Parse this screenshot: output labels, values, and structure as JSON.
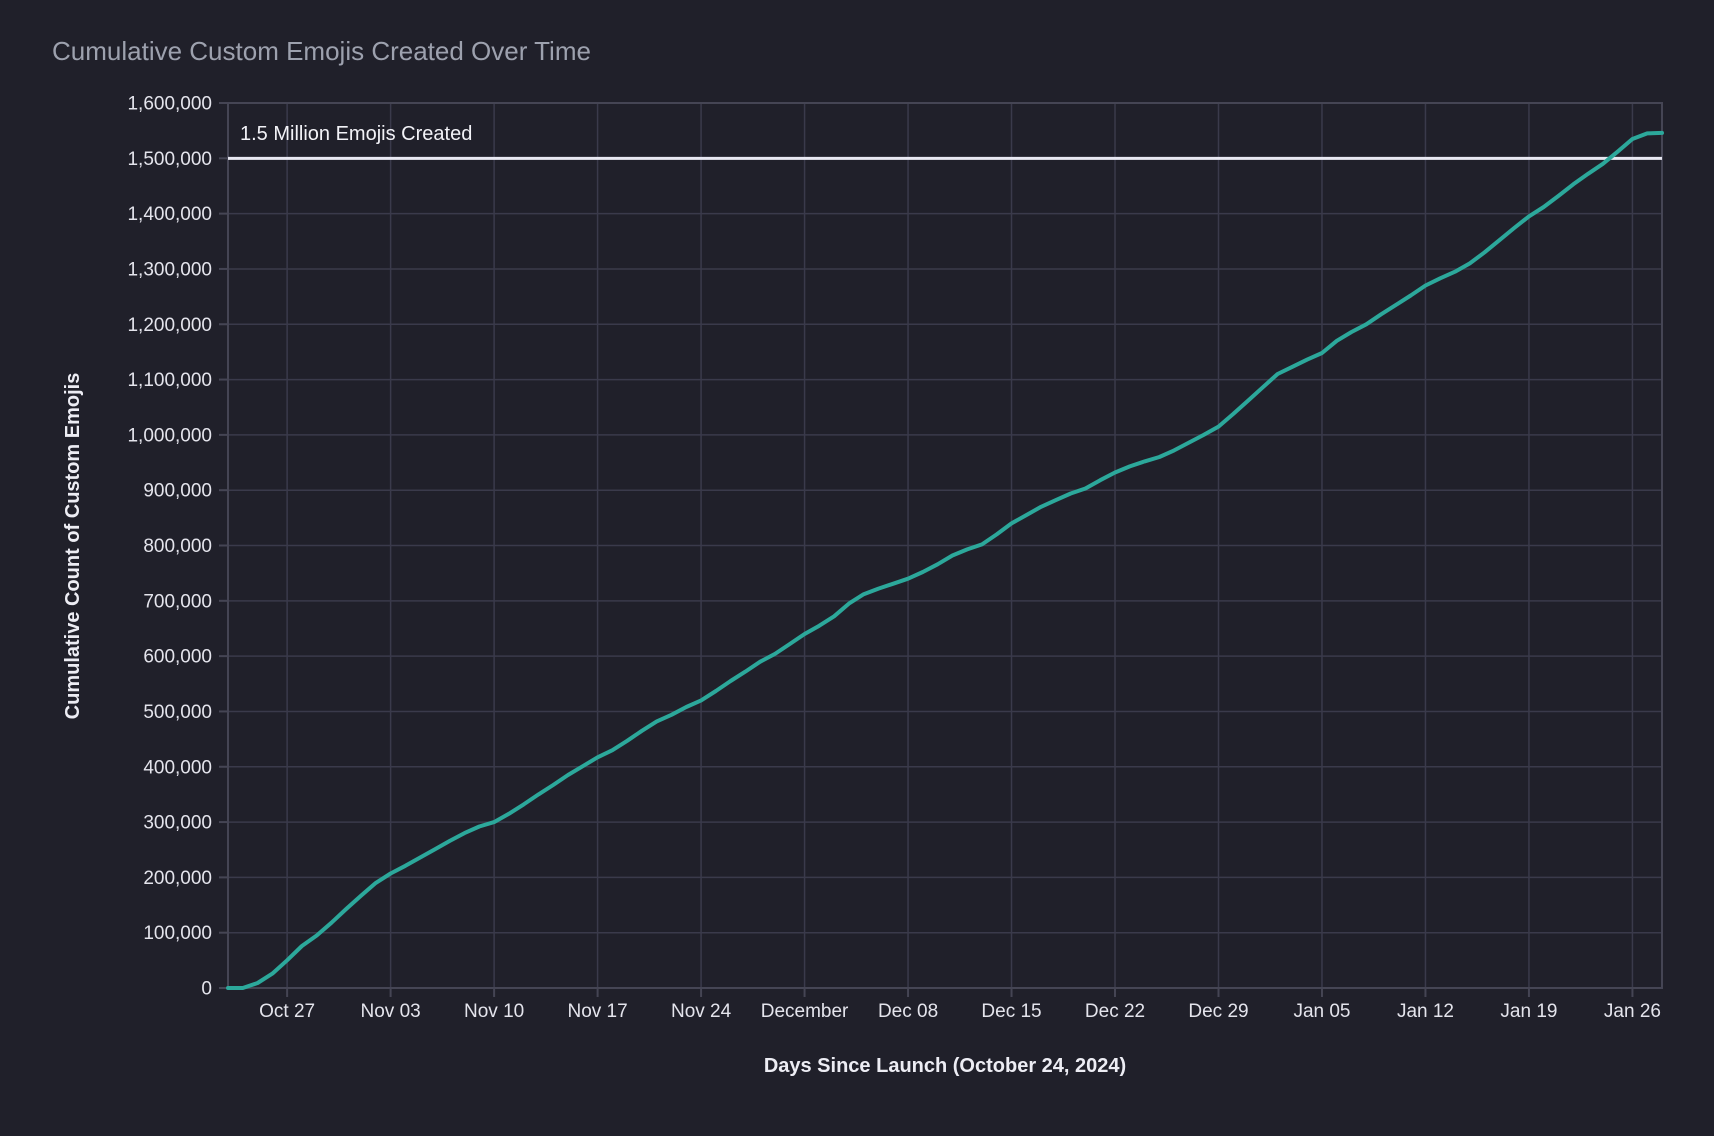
{
  "title": "Cumulative Custom Emojis Created Over Time",
  "colors": {
    "background": "#20202A",
    "grid": "#3A3A4B",
    "spine": "#454554",
    "line": "#2CA89B",
    "reference_line": "#E8E8F2",
    "title_text": "#9DA1AE",
    "tick_text": "#E4E4EC",
    "axis_title_text": "#EDEDF4",
    "annotation_text": "#F2F2F7"
  },
  "chart_data": {
    "type": "line",
    "title": "Cumulative Custom Emojis Created Over Time",
    "xlabel": "Days Since Launch (October 24, 2024)",
    "ylabel": "Cumulative Count of Custom Emojis",
    "grid": true,
    "legend_visible": false,
    "x_unit": "days since launch (Oct 24, 2024)",
    "xlim": [
      -1,
      96
    ],
    "ylim": [
      0,
      1600000
    ],
    "x_ticks": [
      {
        "day": 3,
        "label": "Oct 27"
      },
      {
        "day": 10,
        "label": "Nov 03"
      },
      {
        "day": 17,
        "label": "Nov 10"
      },
      {
        "day": 24,
        "label": "Nov 17"
      },
      {
        "day": 31,
        "label": "Nov 24"
      },
      {
        "day": 38,
        "label": "December"
      },
      {
        "day": 45,
        "label": "Dec 08"
      },
      {
        "day": 52,
        "label": "Dec 15"
      },
      {
        "day": 59,
        "label": "Dec 22"
      },
      {
        "day": 66,
        "label": "Dec 29"
      },
      {
        "day": 73,
        "label": "Jan 05"
      },
      {
        "day": 80,
        "label": "Jan 12"
      },
      {
        "day": 87,
        "label": "Jan 19"
      },
      {
        "day": 94,
        "label": "Jan 26"
      }
    ],
    "y_ticks": [
      {
        "value": 0,
        "label": "0"
      },
      {
        "value": 100000,
        "label": "100,000"
      },
      {
        "value": 200000,
        "label": "200,000"
      },
      {
        "value": 300000,
        "label": "300,000"
      },
      {
        "value": 400000,
        "label": "400,000"
      },
      {
        "value": 500000,
        "label": "500,000"
      },
      {
        "value": 600000,
        "label": "600,000"
      },
      {
        "value": 700000,
        "label": "700,000"
      },
      {
        "value": 800000,
        "label": "800,000"
      },
      {
        "value": 900000,
        "label": "900,000"
      },
      {
        "value": 1000000,
        "label": "1,000,000"
      },
      {
        "value": 1100000,
        "label": "1,100,000"
      },
      {
        "value": 1200000,
        "label": "1,200,000"
      },
      {
        "value": 1300000,
        "label": "1,300,000"
      },
      {
        "value": 1400000,
        "label": "1,400,000"
      },
      {
        "value": 1500000,
        "label": "1,500,000"
      },
      {
        "value": 1600000,
        "label": "1,600,000"
      }
    ],
    "reference_line": {
      "y": 1500000,
      "label": "1.5 Million Emojis Created",
      "color": "#E8E8F2"
    },
    "series": [
      {
        "name": "Cumulative custom emojis",
        "color": "#2CA89B",
        "x_days": [
          -1,
          0,
          1,
          2,
          3,
          4,
          5,
          6,
          7,
          8,
          9,
          10,
          11,
          12,
          13,
          14,
          15,
          16,
          17,
          18,
          19,
          20,
          21,
          22,
          23,
          24,
          25,
          26,
          27,
          28,
          29,
          30,
          31,
          32,
          33,
          34,
          35,
          36,
          37,
          38,
          39,
          40,
          41,
          42,
          43,
          44,
          45,
          46,
          47,
          48,
          49,
          50,
          51,
          52,
          53,
          54,
          55,
          56,
          57,
          58,
          59,
          60,
          61,
          62,
          63,
          64,
          65,
          66,
          67,
          68,
          69,
          70,
          71,
          72,
          73,
          74,
          75,
          76,
          77,
          78,
          79,
          80,
          81,
          82,
          83,
          84,
          85,
          86,
          87,
          88,
          89,
          90,
          91,
          92,
          93,
          94,
          95,
          96
        ],
        "values": [
          0,
          0,
          9000,
          26000,
          50000,
          76000,
          95000,
          118000,
          143000,
          167000,
          190000,
          207000,
          221000,
          236000,
          251000,
          266000,
          280000,
          292000,
          300000,
          315000,
          332000,
          350000,
          367000,
          385000,
          401000,
          417000,
          430000,
          447000,
          465000,
          482000,
          494000,
          508000,
          520000,
          537000,
          555000,
          572000,
          590000,
          604000,
          622000,
          640000,
          655000,
          672000,
          695000,
          712000,
          722000,
          731000,
          740000,
          752000,
          766000,
          782000,
          793000,
          802000,
          820000,
          840000,
          855000,
          870000,
          882000,
          894000,
          903000,
          918000,
          932000,
          943000,
          952000,
          960000,
          972000,
          986000,
          1000000,
          1015000,
          1038000,
          1062000,
          1086000,
          1110000,
          1123000,
          1136000,
          1148000,
          1170000,
          1186000,
          1200000,
          1218000,
          1235000,
          1252000,
          1270000,
          1283000,
          1295000,
          1310000,
          1330000,
          1352000,
          1374000,
          1395000,
          1412000,
          1432000,
          1453000,
          1472000,
          1490000,
          1512000,
          1535000,
          1545000,
          1546000
        ]
      }
    ]
  }
}
